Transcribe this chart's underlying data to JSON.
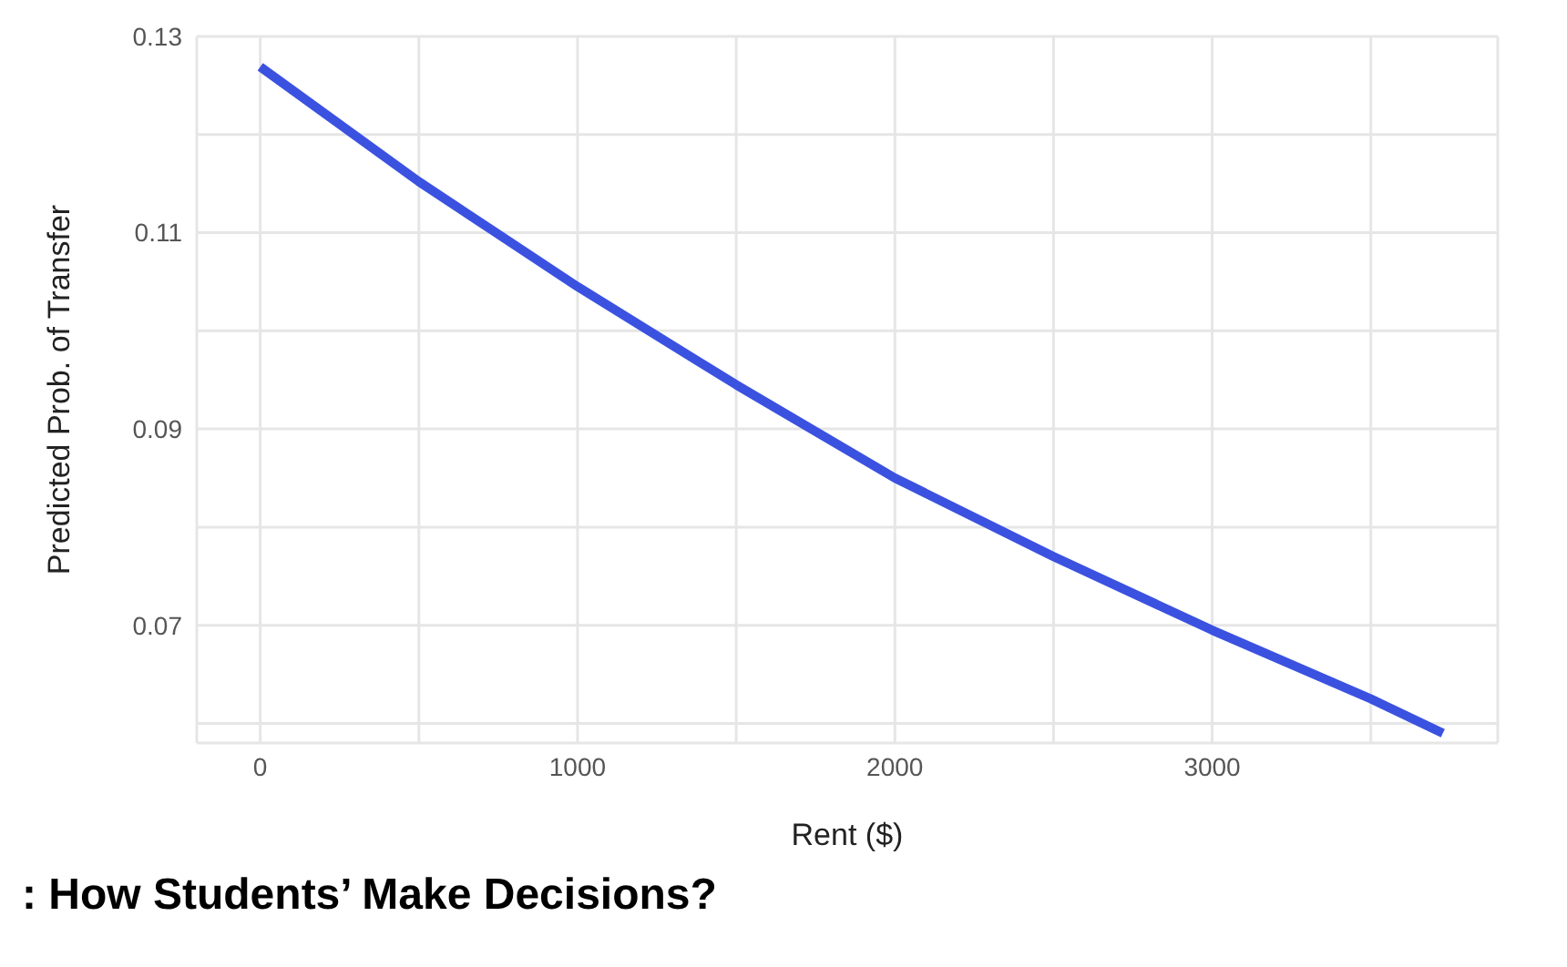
{
  "chart_data": {
    "type": "line",
    "xlabel": "Rent ($)",
    "ylabel": "Predicted Prob. of Transfer",
    "annotations": [
      ": How Students’ Make Decisions?"
    ],
    "x": [
      0,
      500,
      1000,
      1500,
      2000,
      2500,
      3000,
      3500,
      3727
    ],
    "series": [
      {
        "color": "#3b52e0",
        "values": [
          0.1269,
          0.1152,
          0.1045,
          0.0945,
          0.085,
          0.077,
          0.0695,
          0.0625,
          0.059
        ]
      }
    ],
    "xlim": [
      -200,
      3900
    ],
    "xticks": [
      0,
      {
        "value": 500,
        "label": null
      },
      1000,
      {
        "value": 1500,
        "label": null
      },
      2000,
      {
        "value": 2500,
        "label": null
      },
      3000,
      {
        "value": 3500,
        "label": null
      }
    ],
    "ylim": [
      0.058,
      0.13
    ],
    "yticks": [
      {
        "value": 0.06,
        "label": null
      },
      0.07,
      {
        "value": 0.08,
        "label": null
      },
      0.09,
      {
        "value": 0.1,
        "label": null
      },
      0.11,
      {
        "value": 0.12,
        "label": null
      },
      0.13
    ],
    "grid": true,
    "legend": false,
    "marker": "none",
    "line_style": "solid"
  }
}
